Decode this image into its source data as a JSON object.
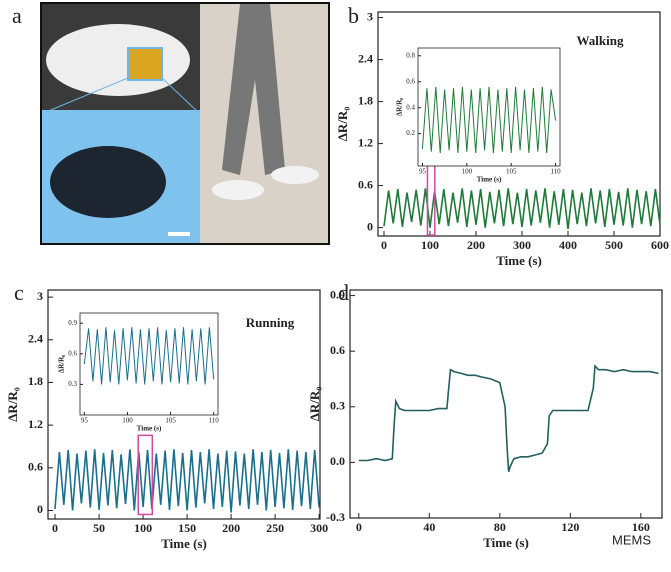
{
  "photo_panel": {
    "label": "a"
  },
  "watermark": "MEMS",
  "chart_data": [
    {
      "type": "line",
      "panel_label": "b",
      "annotation": "Walking",
      "xlabel": "Time (s)",
      "ylabel": "ΔR/R₀",
      "color": "#1f7a3a",
      "xlim": [
        -13,
        600
      ],
      "ylim": [
        -0.12,
        3.08
      ],
      "xticks": [
        0,
        100,
        200,
        300,
        400,
        500,
        600
      ],
      "yticks": [
        0,
        0.6,
        1.2,
        1.8,
        2.4,
        3
      ],
      "x": [
        0,
        10,
        20,
        30,
        40,
        50,
        60,
        70,
        80,
        90,
        100,
        110,
        120,
        130,
        140,
        150,
        160,
        170,
        180,
        190,
        200,
        210,
        220,
        230,
        240,
        250,
        260,
        270,
        280,
        290,
        300,
        310,
        320,
        330,
        340,
        350,
        360,
        370,
        380,
        390,
        400,
        410,
        420,
        430,
        440,
        450,
        460,
        470,
        480,
        490,
        500,
        510,
        520,
        530,
        540,
        550,
        560,
        570,
        580,
        590,
        600
      ],
      "values": [
        0.02,
        0.53,
        0.06,
        0.55,
        0.01,
        0.5,
        0.08,
        0.54,
        0.03,
        0.56,
        0.0,
        0.52,
        0.05,
        0.55,
        0.02,
        0.5,
        0.07,
        0.56,
        0.01,
        0.53,
        0.04,
        0.55,
        0.0,
        0.51,
        0.06,
        0.54,
        0.02,
        0.56,
        0.05,
        0.5,
        0.01,
        0.55,
        0.03,
        0.53,
        0.07,
        0.56,
        0.0,
        0.52,
        0.04,
        0.55,
        -0.02,
        0.54,
        0.05,
        0.5,
        0.02,
        0.56,
        0.06,
        0.53,
        0.01,
        0.55,
        0.04,
        0.51,
        0.03,
        0.56,
        0.0,
        0.54,
        0.05,
        0.52,
        0.02,
        0.55,
        0.04
      ],
      "inset": {
        "type": "line",
        "xlabel": "Time (s)",
        "ylabel": "ΔR/R₀",
        "xlim": [
          94.5,
          110.5
        ],
        "ylim": [
          -0.05,
          0.86
        ],
        "xticks": [
          95,
          100,
          105,
          110
        ],
        "yticks": [
          0.2,
          0.4,
          0.6,
          0.8
        ],
        "x": [
          95,
          95.5,
          96,
          96.5,
          97,
          97.5,
          98,
          98.5,
          99,
          99.5,
          100,
          100.5,
          101,
          101.5,
          102,
          102.5,
          103,
          103.5,
          104,
          104.5,
          105,
          105.5,
          106,
          106.5,
          107,
          107.5,
          108,
          108.5,
          109,
          109.5,
          110
        ],
        "values": [
          0.08,
          0.55,
          0.06,
          0.56,
          0.05,
          0.54,
          0.07,
          0.55,
          0.05,
          0.56,
          0.06,
          0.54,
          0.05,
          0.55,
          0.07,
          0.56,
          0.05,
          0.54,
          0.06,
          0.55,
          0.05,
          0.56,
          0.07,
          0.54,
          0.05,
          0.55,
          0.06,
          0.56,
          0.05,
          0.54,
          0.3
        ]
      }
    },
    {
      "type": "line",
      "panel_label": "c",
      "annotation": "Running",
      "xlabel": "Time (s)",
      "ylabel": "ΔR/R₀",
      "color": "#1b6f8c",
      "xlim": [
        -8,
        301
      ],
      "ylim": [
        -0.12,
        3.1
      ],
      "xticks": [
        0,
        50,
        100,
        150,
        200,
        250,
        300
      ],
      "yticks": [
        0,
        0.6,
        1.2,
        1.8,
        2.4,
        3
      ],
      "x": [
        0,
        5,
        10,
        15,
        20,
        25,
        30,
        35,
        40,
        45,
        50,
        55,
        60,
        65,
        70,
        75,
        80,
        85,
        90,
        95,
        100,
        105,
        110,
        115,
        120,
        125,
        130,
        135,
        140,
        145,
        150,
        155,
        160,
        165,
        170,
        175,
        180,
        185,
        190,
        195,
        200,
        205,
        210,
        215,
        220,
        225,
        230,
        235,
        240,
        245,
        250,
        255,
        260,
        265,
        270,
        275,
        280,
        285,
        290,
        295,
        300
      ],
      "values": [
        0.02,
        0.82,
        0.08,
        0.85,
        0.0,
        0.8,
        0.1,
        0.84,
        0.04,
        0.86,
        0.01,
        0.81,
        0.07,
        0.85,
        0.03,
        0.79,
        0.09,
        0.86,
        0.0,
        0.83,
        0.05,
        0.85,
        0.02,
        0.8,
        0.08,
        0.84,
        0.01,
        0.86,
        0.06,
        0.81,
        0.0,
        0.85,
        0.04,
        0.82,
        0.1,
        0.86,
        0.02,
        0.8,
        0.05,
        0.84,
        -0.03,
        0.83,
        0.07,
        0.8,
        0.02,
        0.86,
        0.08,
        0.82,
        0.0,
        0.85,
        0.05,
        0.81,
        0.03,
        0.86,
        0.01,
        0.84,
        0.06,
        0.82,
        0.02,
        0.85,
        0.04
      ],
      "inset": {
        "type": "line",
        "xlabel": "Time (s)",
        "ylabel": "ΔR/R₀",
        "xlim": [
          94.5,
          110.5
        ],
        "ylim": [
          0,
          1
        ],
        "xticks": [
          95,
          100,
          105,
          110
        ],
        "yticks": [
          0.3,
          0.6,
          0.9
        ],
        "x": [
          95,
          95.5,
          96,
          96.5,
          97,
          97.5,
          98,
          98.5,
          99,
          99.5,
          100,
          100.5,
          101,
          101.5,
          102,
          102.5,
          103,
          103.5,
          104,
          104.5,
          105,
          105.5,
          106,
          106.5,
          107,
          107.5,
          108,
          108.5,
          109,
          109.5,
          110
        ],
        "values": [
          0.5,
          0.85,
          0.33,
          0.84,
          0.3,
          0.86,
          0.32,
          0.83,
          0.3,
          0.85,
          0.34,
          0.86,
          0.31,
          0.84,
          0.3,
          0.85,
          0.33,
          0.86,
          0.3,
          0.83,
          0.32,
          0.85,
          0.31,
          0.86,
          0.3,
          0.84,
          0.33,
          0.85,
          0.3,
          0.86,
          0.35
        ]
      }
    },
    {
      "type": "line",
      "panel_label": "d",
      "xlabel": "Time (s)",
      "ylabel": "ΔR/R₀",
      "color": "#245f5f",
      "xlim": [
        -5,
        172
      ],
      "ylim": [
        -0.3,
        0.93
      ],
      "xticks": [
        0,
        40,
        80,
        120,
        160
      ],
      "yticks": [
        {
          "value": -0.3,
          "label": "-0.3"
        },
        {
          "value": 0,
          "label": "0.0"
        },
        0.3,
        0.6,
        0.9
      ],
      "x": [
        0,
        5,
        10,
        15,
        19,
        20,
        21,
        23,
        26,
        30,
        35,
        40,
        45,
        50,
        51,
        52,
        54,
        58,
        62,
        66,
        70,
        75,
        80,
        83,
        84,
        85,
        86,
        88,
        92,
        96,
        100,
        104,
        107,
        108,
        110,
        114,
        118,
        122,
        126,
        130,
        133,
        134,
        136,
        140,
        145,
        150,
        155,
        160,
        165,
        170
      ],
      "values": [
        0.01,
        0.01,
        0.02,
        0.01,
        0.02,
        0.2,
        0.33,
        0.29,
        0.28,
        0.28,
        0.28,
        0.28,
        0.29,
        0.29,
        0.4,
        0.5,
        0.49,
        0.48,
        0.47,
        0.47,
        0.46,
        0.45,
        0.43,
        0.3,
        0.1,
        -0.05,
        -0.02,
        0.02,
        0.03,
        0.03,
        0.04,
        0.05,
        0.1,
        0.25,
        0.28,
        0.28,
        0.28,
        0.28,
        0.28,
        0.28,
        0.4,
        0.52,
        0.5,
        0.5,
        0.49,
        0.5,
        0.49,
        0.49,
        0.49,
        0.48
      ]
    }
  ]
}
